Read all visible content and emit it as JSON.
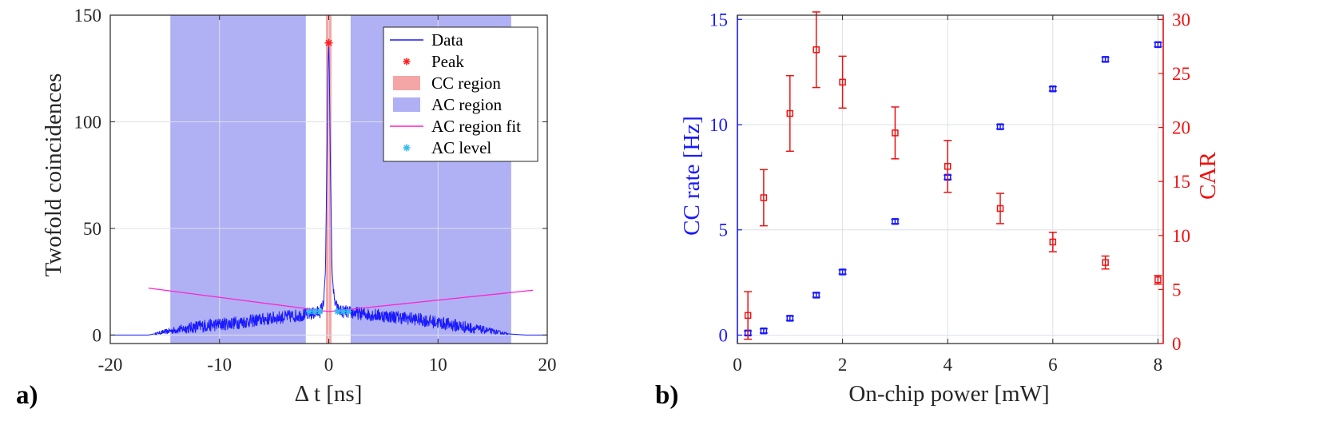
{
  "panels": {
    "a": {
      "label": "a)"
    },
    "b": {
      "label": "b)"
    }
  },
  "chart_data": [
    {
      "id": "a",
      "type": "line",
      "title": "",
      "xlabel": "Δ t [ns]",
      "ylabel": "Twofold coincidences",
      "xlim": [
        -20,
        20
      ],
      "ylim": [
        -4,
        150
      ],
      "xticks": [
        -20,
        -10,
        0,
        10,
        20
      ],
      "xtick_labels": [
        "-20",
        "-10",
        "0",
        "10",
        "20"
      ],
      "yticks": [
        0,
        50,
        100,
        150
      ],
      "ytick_labels": [
        "0",
        "50",
        "100",
        "150"
      ],
      "grid": true,
      "legend_position": "top-right",
      "legend": [
        {
          "label": "Data",
          "kind": "line",
          "color": "#1a1aff"
        },
        {
          "label": "Peak",
          "kind": "asterisk",
          "color": "#ff2020"
        },
        {
          "label": "CC region",
          "kind": "patch",
          "color": "#f4a6a6"
        },
        {
          "label": "AC region",
          "kind": "patch",
          "color": "#b0b0f5"
        },
        {
          "label": "AC region fit",
          "kind": "line",
          "color": "#ff22cc"
        },
        {
          "label": "AC level",
          "kind": "asterisk",
          "color": "#33bbee"
        }
      ],
      "regions": {
        "cc": [
          [
            -0.25,
            0.25
          ]
        ],
        "ac": [
          [
            -14.5,
            -2.1
          ],
          [
            2.0,
            16.7
          ]
        ]
      },
      "data_envelope": {
        "x": [
          -20,
          -16.5,
          -15,
          -12,
          -8,
          -5,
          -3,
          -1.5,
          -0.8,
          -0.5,
          -0.3,
          -0.15,
          -0.05,
          0.0,
          0.05,
          0.15,
          0.3,
          0.5,
          0.8,
          1.2,
          1.5,
          2,
          3,
          5,
          8,
          11,
          14,
          16.5,
          18,
          20
        ],
        "y": [
          0,
          0,
          1.5,
          4,
          6,
          8,
          9,
          10,
          11,
          14,
          30,
          90,
          130,
          137,
          125,
          80,
          30,
          16,
          12,
          11,
          11,
          10.5,
          10,
          9,
          7.5,
          5,
          2.5,
          0.5,
          0,
          0
        ]
      },
      "noise_amplitude": 3,
      "peak": {
        "x": 0,
        "y": 137
      },
      "fit_line": {
        "x": [
          -16.5,
          0,
          18.7
        ],
        "y": [
          22,
          11,
          21
        ]
      },
      "ac_level": {
        "x": [
          -1.8,
          -1.3,
          -0.8,
          0.8,
          1.3,
          1.8
        ],
        "y": [
          11,
          11,
          11,
          11,
          11,
          11
        ]
      }
    },
    {
      "id": "b",
      "type": "scatter",
      "title": "",
      "xlabel": "On-chip power [mW]",
      "xlim": [
        0,
        8.1
      ],
      "xticks": [
        0,
        2,
        4,
        6,
        8
      ],
      "xtick_labels": [
        "0",
        "2",
        "4",
        "6",
        "8"
      ],
      "grid": true,
      "y_left": {
        "label": "CC rate [Hz]",
        "color": "#1a1aff",
        "lim": [
          -0.4,
          15.2
        ],
        "ticks": [
          0,
          5,
          10,
          15
        ],
        "tick_labels": [
          "0",
          "5",
          "10",
          "15"
        ]
      },
      "y_right": {
        "label": "CAR",
        "color": "#ee1111",
        "lim": [
          0,
          30.4
        ],
        "ticks": [
          0,
          5,
          10,
          15,
          20,
          25,
          30
        ],
        "tick_labels": [
          "0",
          "5",
          "10",
          "15",
          "20",
          "25",
          "30"
        ]
      },
      "series": [
        {
          "axis": "left",
          "color": "#1a1aff",
          "marker": "square",
          "x": [
            0.2,
            0.5,
            1,
            1.5,
            2,
            3,
            4,
            5,
            6,
            7,
            8
          ],
          "y": [
            0.1,
            0.2,
            0.8,
            1.9,
            3.0,
            5.4,
            7.5,
            9.9,
            11.7,
            13.1,
            13.8
          ],
          "err": [
            0.1,
            0.1,
            0.1,
            0.1,
            0.1,
            0.1,
            0.1,
            0.1,
            0.1,
            0.1,
            0.1
          ]
        },
        {
          "axis": "right",
          "color": "#ee1111",
          "marker": "square",
          "x": [
            0.2,
            0.5,
            1,
            1.5,
            2,
            3,
            4,
            5,
            6,
            7,
            8
          ],
          "y": [
            2.6,
            13.5,
            21.3,
            27.2,
            24.2,
            19.5,
            16.4,
            12.5,
            9.4,
            7.5,
            5.9
          ],
          "err": [
            2.2,
            2.6,
            3.5,
            3.5,
            2.4,
            2.4,
            2.4,
            1.4,
            0.9,
            0.6,
            0.4
          ]
        }
      ]
    }
  ]
}
